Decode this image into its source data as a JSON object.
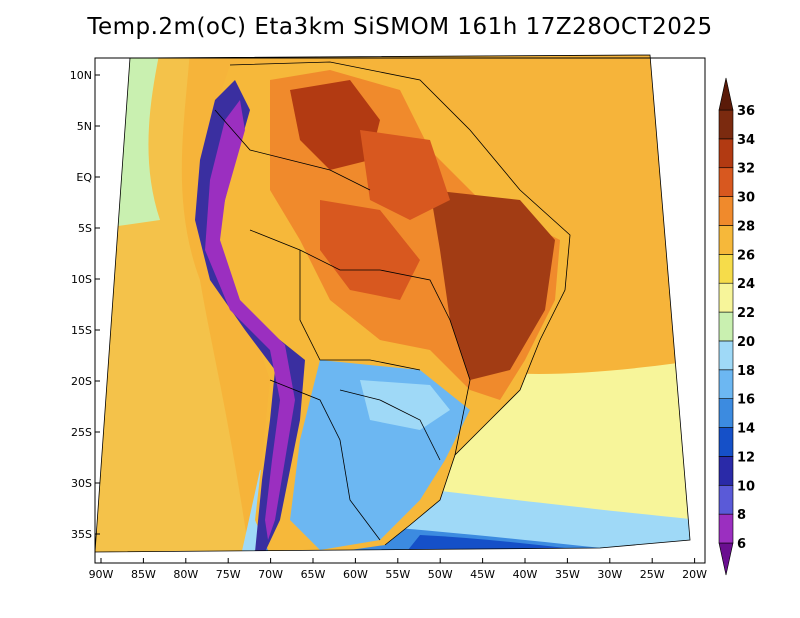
{
  "title": "Temp.2m(oC) Eta3km SiSMOM 161h 17Z28OCT2025",
  "lat_labels": [
    "10N",
    "5N",
    "EQ",
    "5S",
    "10S",
    "15S",
    "20S",
    "25S",
    "30S",
    "35S"
  ],
  "lon_labels": [
    "90W",
    "85W",
    "80W",
    "75W",
    "70W",
    "65W",
    "60W",
    "55W",
    "50W",
    "45W",
    "40W",
    "35W",
    "30W",
    "25W",
    "20W"
  ],
  "colorbar": {
    "labels": [
      "6",
      "8",
      "10",
      "12",
      "14",
      "16",
      "18",
      "20",
      "22",
      "24",
      "26",
      "28",
      "30",
      "32",
      "34",
      "36"
    ],
    "colors": [
      "#6a0f90",
      "#9b2fc0",
      "#5a5ad8",
      "#2a2aa8",
      "#1550c8",
      "#3c8be0",
      "#6cb7f2",
      "#9fd9f7",
      "#c9f0b0",
      "#f7f59a",
      "#f6dc4a",
      "#f6b83a",
      "#f08a2c",
      "#d8581f",
      "#b23a12",
      "#7b2a0f",
      "#5a1a08"
    ]
  },
  "colors": {
    "ocean_north": "#f6b43a",
    "ocean_south": "#f7f5a0",
    "hot_core": "#a23c14",
    "cold_andes": "#3a2fa0",
    "south_cool": "#4f97e6"
  }
}
